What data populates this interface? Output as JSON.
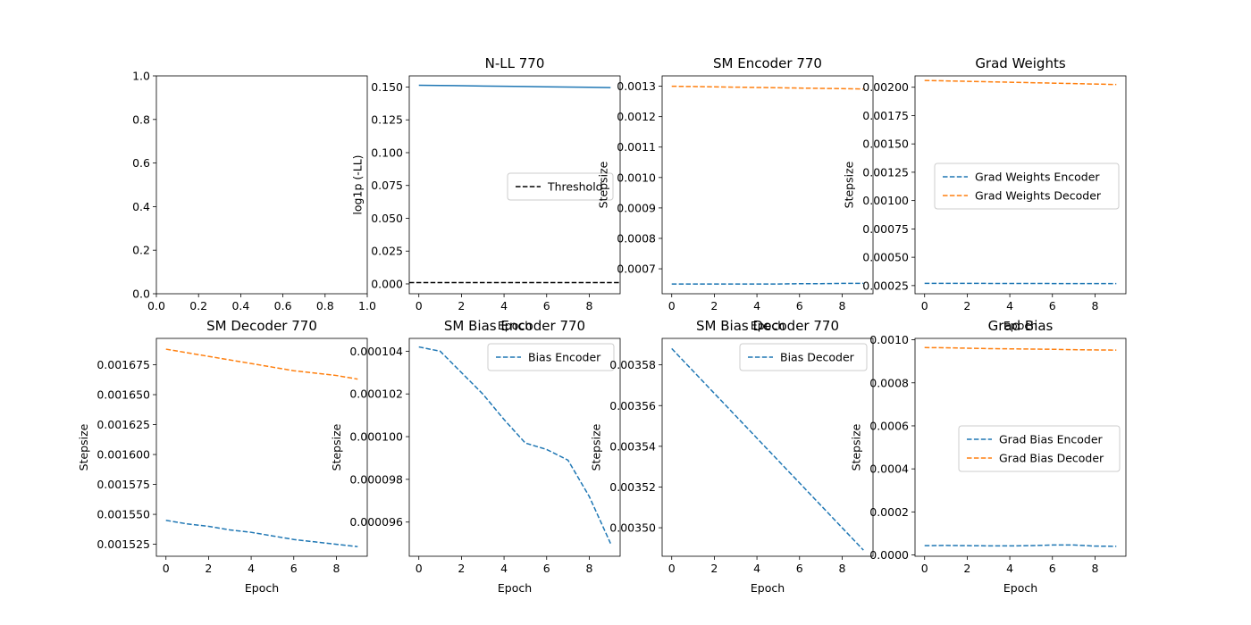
{
  "colors": {
    "blue": "#1f77b4",
    "orange": "#ff7f0e",
    "black": "#000000"
  },
  "chart_data": [
    {
      "id": "empty",
      "type": "line",
      "title": "",
      "xlabel": "",
      "ylabel": "",
      "xlim": [
        0,
        1
      ],
      "ylim": [
        0,
        1
      ],
      "xticks": [
        0.0,
        0.2,
        0.4,
        0.6,
        0.8,
        1.0
      ],
      "xtick_labels": [
        "0.0",
        "0.2",
        "0.4",
        "0.6",
        "0.8",
        "1.0"
      ],
      "yticks": [
        0.0,
        0.2,
        0.4,
        0.6,
        0.8,
        1.0
      ],
      "ytick_labels": [
        "0.0",
        "0.2",
        "0.4",
        "0.6",
        "0.8",
        "1.0"
      ],
      "series": [],
      "legend": null
    },
    {
      "id": "nll",
      "type": "line",
      "title": "N-LL 770",
      "xlabel": "Epoch",
      "ylabel": "log1p (-LL)",
      "xlim": [
        -0.45,
        9.45
      ],
      "ylim": [
        -0.0075,
        0.1585
      ],
      "xticks": [
        0,
        2,
        4,
        6,
        8
      ],
      "xtick_labels": [
        "0",
        "2",
        "4",
        "6",
        "8"
      ],
      "yticks": [
        0.0,
        0.025,
        0.05,
        0.075,
        0.1,
        0.125,
        0.15
      ],
      "ytick_labels": [
        "0.000",
        "0.025",
        "0.050",
        "0.075",
        "0.100",
        "0.125",
        "0.150"
      ],
      "series": [
        {
          "color": "#1f77b4",
          "dash": false,
          "x": [
            0,
            1,
            2,
            3,
            4,
            5,
            6,
            7,
            8,
            9
          ],
          "values": [
            0.1514,
            0.1512,
            0.151,
            0.1508,
            0.1506,
            0.1504,
            0.1502,
            0.15,
            0.1498,
            0.1496
          ]
        },
        {
          "name": "Threshold",
          "color": "#000000",
          "dash": true,
          "x": [
            -0.45,
            9.45
          ],
          "values": [
            0.001,
            0.001
          ]
        }
      ],
      "legend": {
        "placement": "center-right",
        "entries": [
          "Threshold"
        ]
      }
    },
    {
      "id": "sm-encoder",
      "type": "line",
      "title": "SM Encoder 770",
      "xlabel": "Epoch",
      "ylabel": "Stepsize",
      "xlim": [
        -0.45,
        9.45
      ],
      "ylim": [
        0.000618,
        0.001334
      ],
      "xticks": [
        0,
        2,
        4,
        6,
        8
      ],
      "xtick_labels": [
        "0",
        "2",
        "4",
        "6",
        "8"
      ],
      "yticks": [
        0.0007,
        0.0008,
        0.0009,
        0.001,
        0.0011,
        0.0012,
        0.0013
      ],
      "ytick_labels": [
        "0.0007",
        "0.0008",
        "0.0009",
        "0.0010",
        "0.0011",
        "0.0012",
        "0.0013"
      ],
      "series": [
        {
          "color": "#1f77b4",
          "dash": true,
          "x": [
            0,
            1,
            2,
            3,
            4,
            5,
            6,
            7,
            8,
            9
          ],
          "values": [
            0.00065,
            0.00065,
            0.00065,
            0.00065,
            0.00065,
            0.00065,
            0.000651,
            0.000651,
            0.000652,
            0.000652
          ]
        },
        {
          "color": "#ff7f0e",
          "dash": true,
          "x": [
            0,
            1,
            2,
            3,
            4,
            5,
            6,
            7,
            8,
            9
          ],
          "values": [
            0.0013,
            0.001299,
            0.001298,
            0.001297,
            0.001296,
            0.001295,
            0.001294,
            0.001293,
            0.001292,
            0.001291
          ]
        }
      ],
      "legend": null
    },
    {
      "id": "grad-weights",
      "type": "line",
      "title": "Grad Weights",
      "xlabel": "Epoch",
      "ylabel": "Stepsize",
      "xlim": [
        -0.45,
        9.45
      ],
      "ylim": [
        0.000178,
        0.0021
      ],
      "xticks": [
        0,
        2,
        4,
        6,
        8
      ],
      "xtick_labels": [
        "0",
        "2",
        "4",
        "6",
        "8"
      ],
      "yticks": [
        0.00025,
        0.0005,
        0.00075,
        0.001,
        0.00125,
        0.0015,
        0.00175,
        0.002
      ],
      "ytick_labels": [
        "0.00025",
        "0.00050",
        "0.00075",
        "0.00100",
        "0.00125",
        "0.00150",
        "0.00175",
        "0.00200"
      ],
      "series": [
        {
          "name": "Grad Weights Encoder",
          "color": "#1f77b4",
          "dash": true,
          "x": [
            0,
            1,
            2,
            3,
            4,
            5,
            6,
            7,
            8,
            9
          ],
          "values": [
            0.00027,
            0.00027,
            0.00027,
            0.000269,
            0.000269,
            0.000269,
            0.000268,
            0.000268,
            0.000268,
            0.000268
          ]
        },
        {
          "name": "Grad Weights Decoder",
          "color": "#ff7f0e",
          "dash": true,
          "x": [
            0,
            1,
            2,
            3,
            4,
            5,
            6,
            7,
            8,
            9
          ],
          "values": [
            0.00206,
            0.002056,
            0.002052,
            0.002048,
            0.002044,
            0.00204,
            0.002036,
            0.002032,
            0.002028,
            0.002024
          ]
        }
      ],
      "legend": {
        "placement": "center-right",
        "entries": [
          "Grad Weights Encoder",
          "Grad Weights Decoder"
        ]
      }
    },
    {
      "id": "sm-decoder",
      "type": "line",
      "title": "SM Decoder 770",
      "xlabel": "Epoch",
      "ylabel": "Stepsize",
      "xlim": [
        -0.45,
        9.45
      ],
      "ylim": [
        0.001515,
        0.001697
      ],
      "xticks": [
        0,
        2,
        4,
        6,
        8
      ],
      "xtick_labels": [
        "0",
        "2",
        "4",
        "6",
        "8"
      ],
      "yticks": [
        0.001525,
        0.00155,
        0.001575,
        0.0016,
        0.001625,
        0.00165,
        0.001675
      ],
      "ytick_labels": [
        "0.001525",
        "0.001550",
        "0.001575",
        "0.001600",
        "0.001625",
        "0.001650",
        "0.001675"
      ],
      "series": [
        {
          "color": "#1f77b4",
          "dash": true,
          "x": [
            0,
            1,
            2,
            3,
            4,
            5,
            6,
            7,
            8,
            9
          ],
          "values": [
            0.001545,
            0.001542,
            0.00154,
            0.001537,
            0.001535,
            0.001532,
            0.001529,
            0.001527,
            0.001525,
            0.001523
          ]
        },
        {
          "color": "#ff7f0e",
          "dash": true,
          "x": [
            0,
            1,
            2,
            3,
            4,
            5,
            6,
            7,
            8,
            9
          ],
          "values": [
            0.001688,
            0.001685,
            0.001682,
            0.001679,
            0.001676,
            0.001673,
            0.00167,
            0.001668,
            0.001666,
            0.001663
          ]
        }
      ],
      "legend": null
    },
    {
      "id": "sm-bias-encoder",
      "type": "line",
      "title": "SM Bias Encoder 770",
      "xlabel": "Epoch",
      "ylabel": "Stepsize",
      "xlim": [
        -0.45,
        9.45
      ],
      "ylim": [
        9.44e-05,
        0.0001046
      ],
      "xticks": [
        0,
        2,
        4,
        6,
        8
      ],
      "xtick_labels": [
        "0",
        "2",
        "4",
        "6",
        "8"
      ],
      "yticks": [
        9.6e-05,
        9.8e-05,
        0.0001,
        0.000102,
        0.000104
      ],
      "ytick_labels": [
        "0.000096",
        "0.000098",
        "0.000100",
        "0.000102",
        "0.000104"
      ],
      "series": [
        {
          "name": "Bias Encoder",
          "color": "#1f77b4",
          "dash": true,
          "x": [
            0,
            1,
            2,
            3,
            4,
            5,
            6,
            7,
            8,
            9
          ],
          "values": [
            0.0001042,
            0.000104,
            0.000103,
            0.000102,
            0.0001008,
            9.97e-05,
            9.94e-05,
            9.89e-05,
            9.72e-05,
            9.5e-05
          ]
        }
      ],
      "legend": {
        "placement": "upper-right",
        "entries": [
          "Bias Encoder"
        ]
      }
    },
    {
      "id": "sm-bias-decoder",
      "type": "line",
      "title": "SM Bias Decoder 770",
      "xlabel": "Epoch",
      "ylabel": "Stepsize",
      "xlim": [
        -0.45,
        9.45
      ],
      "ylim": [
        0.003486,
        0.003593
      ],
      "xticks": [
        0,
        2,
        4,
        6,
        8
      ],
      "xtick_labels": [
        "0",
        "2",
        "4",
        "6",
        "8"
      ],
      "yticks": [
        0.0035,
        0.00352,
        0.00354,
        0.00356,
        0.00358
      ],
      "ytick_labels": [
        "0.00350",
        "0.00352",
        "0.00354",
        "0.00356",
        "0.00358"
      ],
      "series": [
        {
          "name": "Bias Decoder",
          "color": "#1f77b4",
          "dash": true,
          "x": [
            0,
            1,
            2,
            3,
            4,
            5,
            6,
            7,
            8,
            9
          ],
          "values": [
            0.003588,
            0.003577,
            0.003566,
            0.003555,
            0.003544,
            0.003533,
            0.003522,
            0.003511,
            0.0035,
            0.003489
          ]
        }
      ],
      "legend": {
        "placement": "upper-right",
        "entries": [
          "Bias Decoder"
        ]
      }
    },
    {
      "id": "grad-bias",
      "type": "line",
      "title": "Grad Bias",
      "xlabel": "Epoch",
      "ylabel": "Stepsize",
      "xlim": [
        -0.45,
        9.45
      ],
      "ylim": [
        -6.2e-06,
        0.0010066
      ],
      "xticks": [
        0,
        2,
        4,
        6,
        8
      ],
      "xtick_labels": [
        "0",
        "2",
        "4",
        "6",
        "8"
      ],
      "yticks": [
        0.0,
        0.0002,
        0.0004,
        0.0006,
        0.0008,
        0.001
      ],
      "ytick_labels": [
        "0.0000",
        "0.0002",
        "0.0004",
        "0.0006",
        "0.0008",
        "0.0010"
      ],
      "series": [
        {
          "name": "Grad Bias Encoder",
          "color": "#1f77b4",
          "dash": true,
          "x": [
            0,
            1,
            2,
            3,
            4,
            5,
            6,
            7,
            8,
            9
          ],
          "values": [
            4.3e-05,
            4.4e-05,
            4.3e-05,
            4.2e-05,
            4.2e-05,
            4.3e-05,
            4.6e-05,
            4.6e-05,
            4.1e-05,
            4e-05
          ]
        },
        {
          "name": "Grad Bias Decoder",
          "color": "#ff7f0e",
          "dash": true,
          "x": [
            0,
            1,
            2,
            3,
            4,
            5,
            6,
            7,
            8,
            9
          ],
          "values": [
            0.000964,
            0.000963,
            0.000961,
            0.000959,
            0.000958,
            0.000957,
            0.000956,
            0.000954,
            0.000953,
            0.000952
          ]
        }
      ],
      "legend": {
        "placement": "center-right",
        "entries": [
          "Grad Bias Encoder",
          "Grad Bias Decoder"
        ]
      }
    }
  ]
}
